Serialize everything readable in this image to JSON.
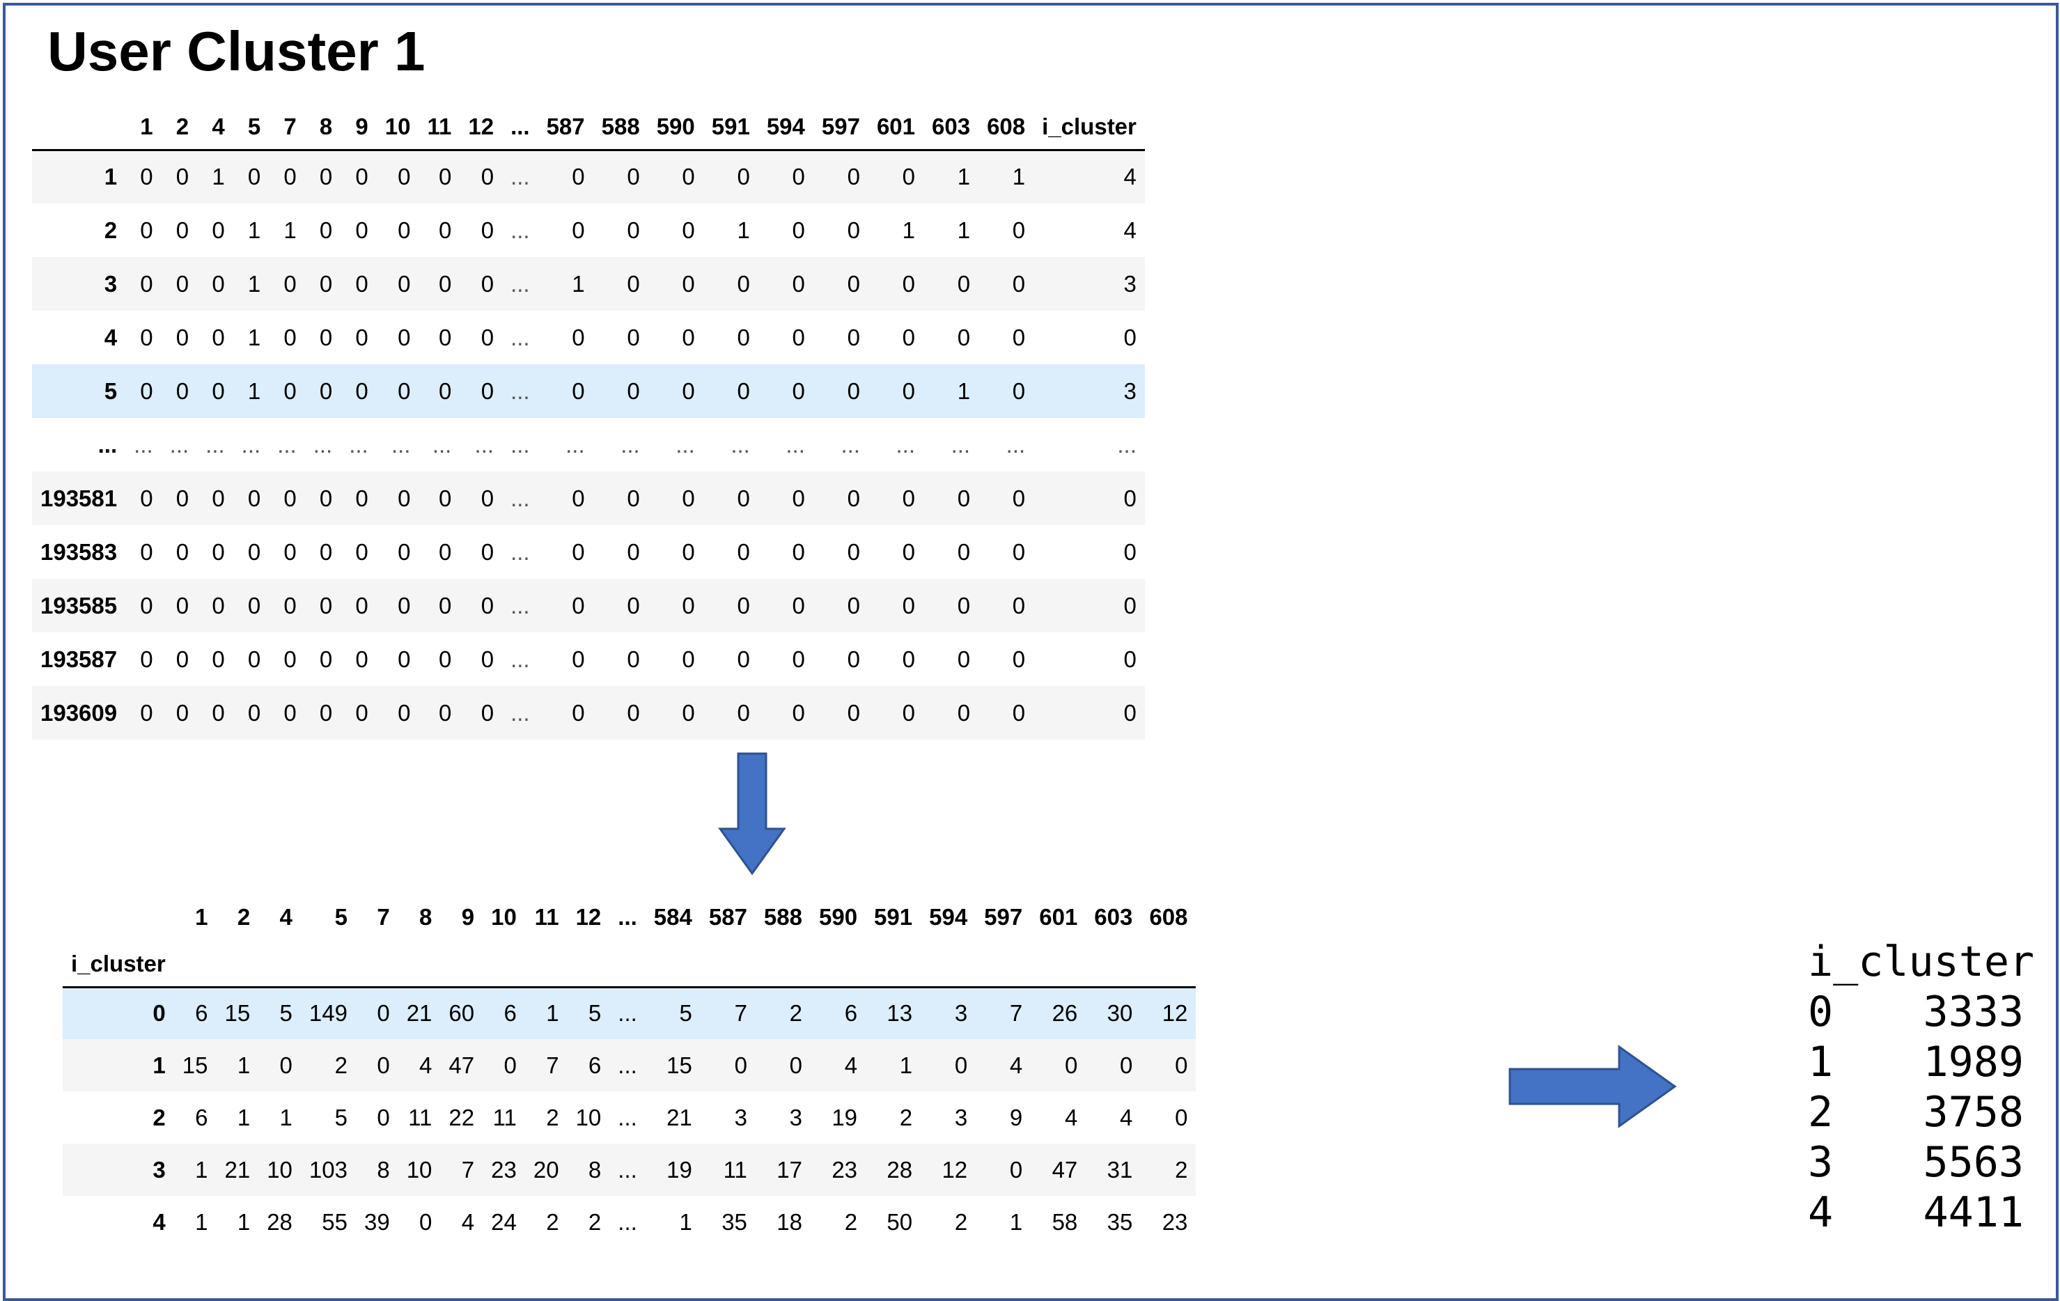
{
  "title": "User Cluster 1",
  "table1": {
    "columns": [
      "1",
      "2",
      "4",
      "5",
      "7",
      "8",
      "9",
      "10",
      "11",
      "12",
      "...",
      "587",
      "588",
      "590",
      "591",
      "594",
      "597",
      "601",
      "603",
      "608",
      "i_cluster"
    ],
    "rows": [
      {
        "index": "1",
        "cells": [
          "0",
          "0",
          "1",
          "0",
          "0",
          "0",
          "0",
          "0",
          "0",
          "0",
          "...",
          "0",
          "0",
          "0",
          "0",
          "0",
          "0",
          "0",
          "1",
          "1",
          "4"
        ]
      },
      {
        "index": "2",
        "cells": [
          "0",
          "0",
          "0",
          "1",
          "1",
          "0",
          "0",
          "0",
          "0",
          "0",
          "...",
          "0",
          "0",
          "0",
          "1",
          "0",
          "0",
          "1",
          "1",
          "0",
          "4"
        ]
      },
      {
        "index": "3",
        "cells": [
          "0",
          "0",
          "0",
          "1",
          "0",
          "0",
          "0",
          "0",
          "0",
          "0",
          "...",
          "1",
          "0",
          "0",
          "0",
          "0",
          "0",
          "0",
          "0",
          "0",
          "3"
        ]
      },
      {
        "index": "4",
        "cells": [
          "0",
          "0",
          "0",
          "1",
          "0",
          "0",
          "0",
          "0",
          "0",
          "0",
          "...",
          "0",
          "0",
          "0",
          "0",
          "0",
          "0",
          "0",
          "0",
          "0",
          "0"
        ]
      },
      {
        "index": "5",
        "cells": [
          "0",
          "0",
          "0",
          "1",
          "0",
          "0",
          "0",
          "0",
          "0",
          "0",
          "...",
          "0",
          "0",
          "0",
          "0",
          "0",
          "0",
          "0",
          "1",
          "0",
          "3"
        ]
      },
      {
        "index": "...",
        "cells": [
          "...",
          "...",
          "...",
          "...",
          "...",
          "...",
          "...",
          "...",
          "...",
          "...",
          "...",
          "...",
          "...",
          "...",
          "...",
          "...",
          "...",
          "...",
          "...",
          "...",
          "..."
        ]
      },
      {
        "index": "193581",
        "cells": [
          "0",
          "0",
          "0",
          "0",
          "0",
          "0",
          "0",
          "0",
          "0",
          "0",
          "...",
          "0",
          "0",
          "0",
          "0",
          "0",
          "0",
          "0",
          "0",
          "0",
          "0"
        ]
      },
      {
        "index": "193583",
        "cells": [
          "0",
          "0",
          "0",
          "0",
          "0",
          "0",
          "0",
          "0",
          "0",
          "0",
          "...",
          "0",
          "0",
          "0",
          "0",
          "0",
          "0",
          "0",
          "0",
          "0",
          "0"
        ]
      },
      {
        "index": "193585",
        "cells": [
          "0",
          "0",
          "0",
          "0",
          "0",
          "0",
          "0",
          "0",
          "0",
          "0",
          "...",
          "0",
          "0",
          "0",
          "0",
          "0",
          "0",
          "0",
          "0",
          "0",
          "0"
        ]
      },
      {
        "index": "193587",
        "cells": [
          "0",
          "0",
          "0",
          "0",
          "0",
          "0",
          "0",
          "0",
          "0",
          "0",
          "...",
          "0",
          "0",
          "0",
          "0",
          "0",
          "0",
          "0",
          "0",
          "0",
          "0"
        ]
      },
      {
        "index": "193609",
        "cells": [
          "0",
          "0",
          "0",
          "0",
          "0",
          "0",
          "0",
          "0",
          "0",
          "0",
          "...",
          "0",
          "0",
          "0",
          "0",
          "0",
          "0",
          "0",
          "0",
          "0",
          "0"
        ]
      }
    ]
  },
  "table2": {
    "index_name": "i_cluster",
    "columns": [
      "1",
      "2",
      "4",
      "5",
      "7",
      "8",
      "9",
      "10",
      "11",
      "12",
      "...",
      "584",
      "587",
      "588",
      "590",
      "591",
      "594",
      "597",
      "601",
      "603",
      "608"
    ],
    "rows": [
      {
        "index": "0",
        "cells": [
          "6",
          "15",
          "5",
          "149",
          "0",
          "21",
          "60",
          "6",
          "1",
          "5",
          "...",
          "5",
          "7",
          "2",
          "6",
          "13",
          "3",
          "7",
          "26",
          "30",
          "12"
        ]
      },
      {
        "index": "1",
        "cells": [
          "15",
          "1",
          "0",
          "2",
          "0",
          "4",
          "47",
          "0",
          "7",
          "6",
          "...",
          "15",
          "0",
          "0",
          "4",
          "1",
          "0",
          "4",
          "0",
          "0",
          "0"
        ]
      },
      {
        "index": "2",
        "cells": [
          "6",
          "1",
          "1",
          "5",
          "0",
          "11",
          "22",
          "11",
          "2",
          "10",
          "...",
          "21",
          "3",
          "3",
          "19",
          "2",
          "3",
          "9",
          "4",
          "4",
          "0"
        ]
      },
      {
        "index": "3",
        "cells": [
          "1",
          "21",
          "10",
          "103",
          "8",
          "10",
          "7",
          "23",
          "20",
          "8",
          "...",
          "19",
          "11",
          "17",
          "23",
          "28",
          "12",
          "0",
          "47",
          "31",
          "2"
        ]
      },
      {
        "index": "4",
        "cells": [
          "1",
          "1",
          "28",
          "55",
          "39",
          "0",
          "4",
          "24",
          "2",
          "2",
          "...",
          "1",
          "35",
          "18",
          "2",
          "50",
          "2",
          "1",
          "58",
          "35",
          "23"
        ]
      }
    ]
  },
  "series": {
    "name": "i_cluster",
    "items": [
      {
        "index": "0",
        "value": "3333"
      },
      {
        "index": "1",
        "value": "1989"
      },
      {
        "index": "2",
        "value": "3758"
      },
      {
        "index": "3",
        "value": "5563"
      },
      {
        "index": "4",
        "value": "4411"
      }
    ]
  },
  "colors": {
    "arrow": "#4472c4",
    "arrow_border": "#2f528f",
    "frame": "#3b5998",
    "row_highlight": "#dcedfb",
    "row_stripe": "#f5f5f5"
  }
}
